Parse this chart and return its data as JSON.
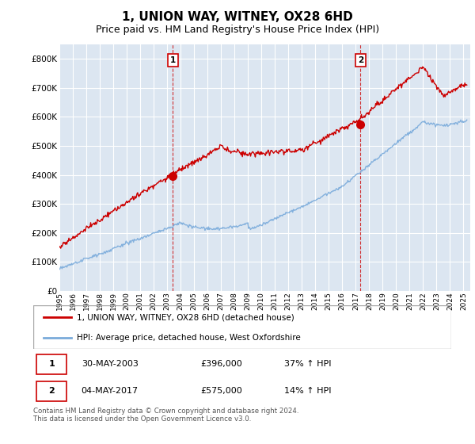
{
  "title": "1, UNION WAY, WITNEY, OX28 6HD",
  "subtitle": "Price paid vs. HM Land Registry's House Price Index (HPI)",
  "ylabel_ticks": [
    "£0",
    "£100K",
    "£200K",
    "£300K",
    "£400K",
    "£500K",
    "£600K",
    "£700K",
    "£800K"
  ],
  "ytick_values": [
    0,
    100000,
    200000,
    300000,
    400000,
    500000,
    600000,
    700000,
    800000
  ],
  "ylim": [
    0,
    850000
  ],
  "red_color": "#cc0000",
  "blue_color": "#7aabdb",
  "plot_bg": "#dce6f1",
  "grid_color": "#ffffff",
  "transaction1_year": 2003.42,
  "transaction1_value": 396000,
  "transaction1_date": "30-MAY-2003",
  "transaction1_price": "£396,000",
  "transaction1_hpi": "37% ↑ HPI",
  "transaction2_year": 2017.35,
  "transaction2_value": 575000,
  "transaction2_date": "04-MAY-2017",
  "transaction2_price": "£575,000",
  "transaction2_hpi": "14% ↑ HPI",
  "legend_label_red": "1, UNION WAY, WITNEY, OX28 6HD (detached house)",
  "legend_label_blue": "HPI: Average price, detached house, West Oxfordshire",
  "footnote": "Contains HM Land Registry data © Crown copyright and database right 2024.\nThis data is licensed under the Open Government Licence v3.0.",
  "title_fontsize": 11,
  "subtitle_fontsize": 9
}
